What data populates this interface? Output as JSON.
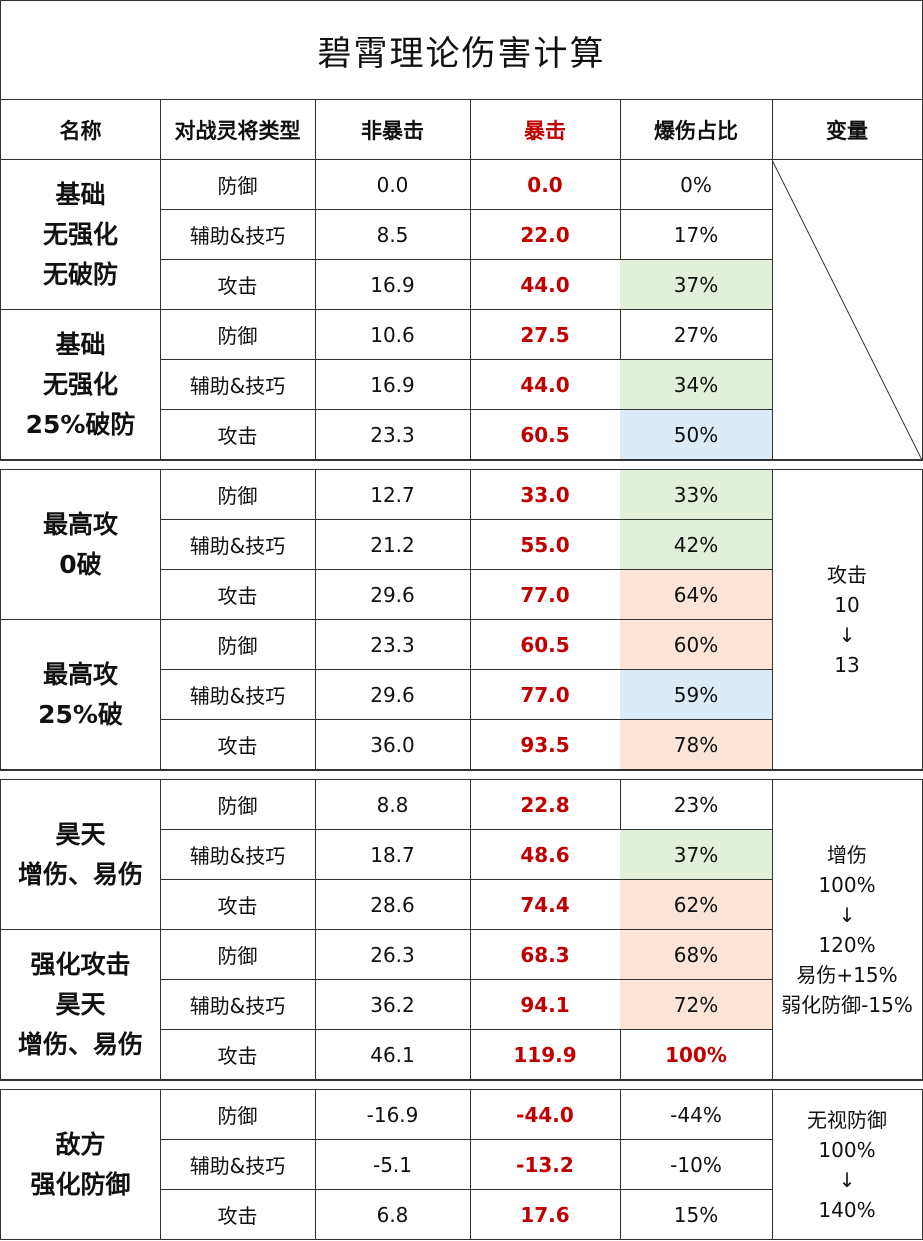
{
  "title": "碧霄理论伤害计算",
  "headers": [
    "名称",
    "对战灵将类型",
    "非暴击",
    "暴击",
    "爆伤占比",
    "变量"
  ],
  "groups": [
    {
      "name": "基础\n无强化\n无破防",
      "rows": [
        {
          "type": "防御",
          "normal": "0.0",
          "crit": "0.0",
          "ratio": "0%",
          "bg": ""
        },
        {
          "type": "辅助&技巧",
          "normal": "8.5",
          "crit": "22.0",
          "ratio": "17%",
          "bg": ""
        },
        {
          "type": "攻击",
          "normal": "16.9",
          "crit": "44.0",
          "ratio": "37%",
          "bg": "green"
        }
      ]
    },
    {
      "name": "基础\n无强化\n25%破防",
      "rows": [
        {
          "type": "防御",
          "normal": "10.6",
          "crit": "27.5",
          "ratio": "27%",
          "bg": ""
        },
        {
          "type": "辅助&技巧",
          "normal": "16.9",
          "crit": "44.0",
          "ratio": "34%",
          "bg": "green"
        },
        {
          "type": "攻击",
          "normal": "23.3",
          "crit": "60.5",
          "ratio": "50%",
          "bg": "blue"
        }
      ]
    },
    {
      "name": "最高攻\n0破",
      "rows": [
        {
          "type": "防御",
          "normal": "12.7",
          "crit": "33.0",
          "ratio": "33%",
          "bg": "green"
        },
        {
          "type": "辅助&技巧",
          "normal": "21.2",
          "crit": "55.0",
          "ratio": "42%",
          "bg": "green"
        },
        {
          "type": "攻击",
          "normal": "29.6",
          "crit": "77.0",
          "ratio": "64%",
          "bg": "orange"
        }
      ]
    },
    {
      "name": "最高攻\n25%破",
      "rows": [
        {
          "type": "防御",
          "normal": "23.3",
          "crit": "60.5",
          "ratio": "60%",
          "bg": "orange"
        },
        {
          "type": "辅助&技巧",
          "normal": "29.6",
          "crit": "77.0",
          "ratio": "59%",
          "bg": "blue"
        },
        {
          "type": "攻击",
          "normal": "36.0",
          "crit": "93.5",
          "ratio": "78%",
          "bg": "orange"
        }
      ]
    },
    {
      "name": "昊天\n增伤、易伤",
      "rows": [
        {
          "type": "防御",
          "normal": "8.8",
          "crit": "22.8",
          "ratio": "23%",
          "bg": ""
        },
        {
          "type": "辅助&技巧",
          "normal": "18.7",
          "crit": "48.6",
          "ratio": "37%",
          "bg": "green"
        },
        {
          "type": "攻击",
          "normal": "28.6",
          "crit": "74.4",
          "ratio": "62%",
          "bg": "orange"
        }
      ]
    },
    {
      "name": "强化攻击\n昊天\n增伤、易伤",
      "rows": [
        {
          "type": "防御",
          "normal": "26.3",
          "crit": "68.3",
          "ratio": "68%",
          "bg": "orange"
        },
        {
          "type": "辅助&技巧",
          "normal": "36.2",
          "crit": "94.1",
          "ratio": "72%",
          "bg": "orange"
        },
        {
          "type": "攻击",
          "normal": "46.1",
          "crit": "119.9",
          "ratio": "100%",
          "bg": "",
          "highlight": true
        }
      ]
    },
    {
      "name": "敌方\n强化防御",
      "rows": [
        {
          "type": "防御",
          "normal": "-16.9",
          "crit": "-44.0",
          "ratio": "-44%",
          "bg": ""
        },
        {
          "type": "辅助&技巧",
          "normal": "-5.1",
          "crit": "-13.2",
          "ratio": "-10%",
          "bg": ""
        },
        {
          "type": "攻击",
          "normal": "6.8",
          "crit": "17.6",
          "ratio": "15%",
          "bg": ""
        }
      ]
    }
  ],
  "variables": [
    "攻击\n10\n↓\n13",
    "增伤\n100%\n↓\n120%\n易伤+15%\n弱化防御-15%",
    "无视防御\n100%\n↓\n140%"
  ]
}
